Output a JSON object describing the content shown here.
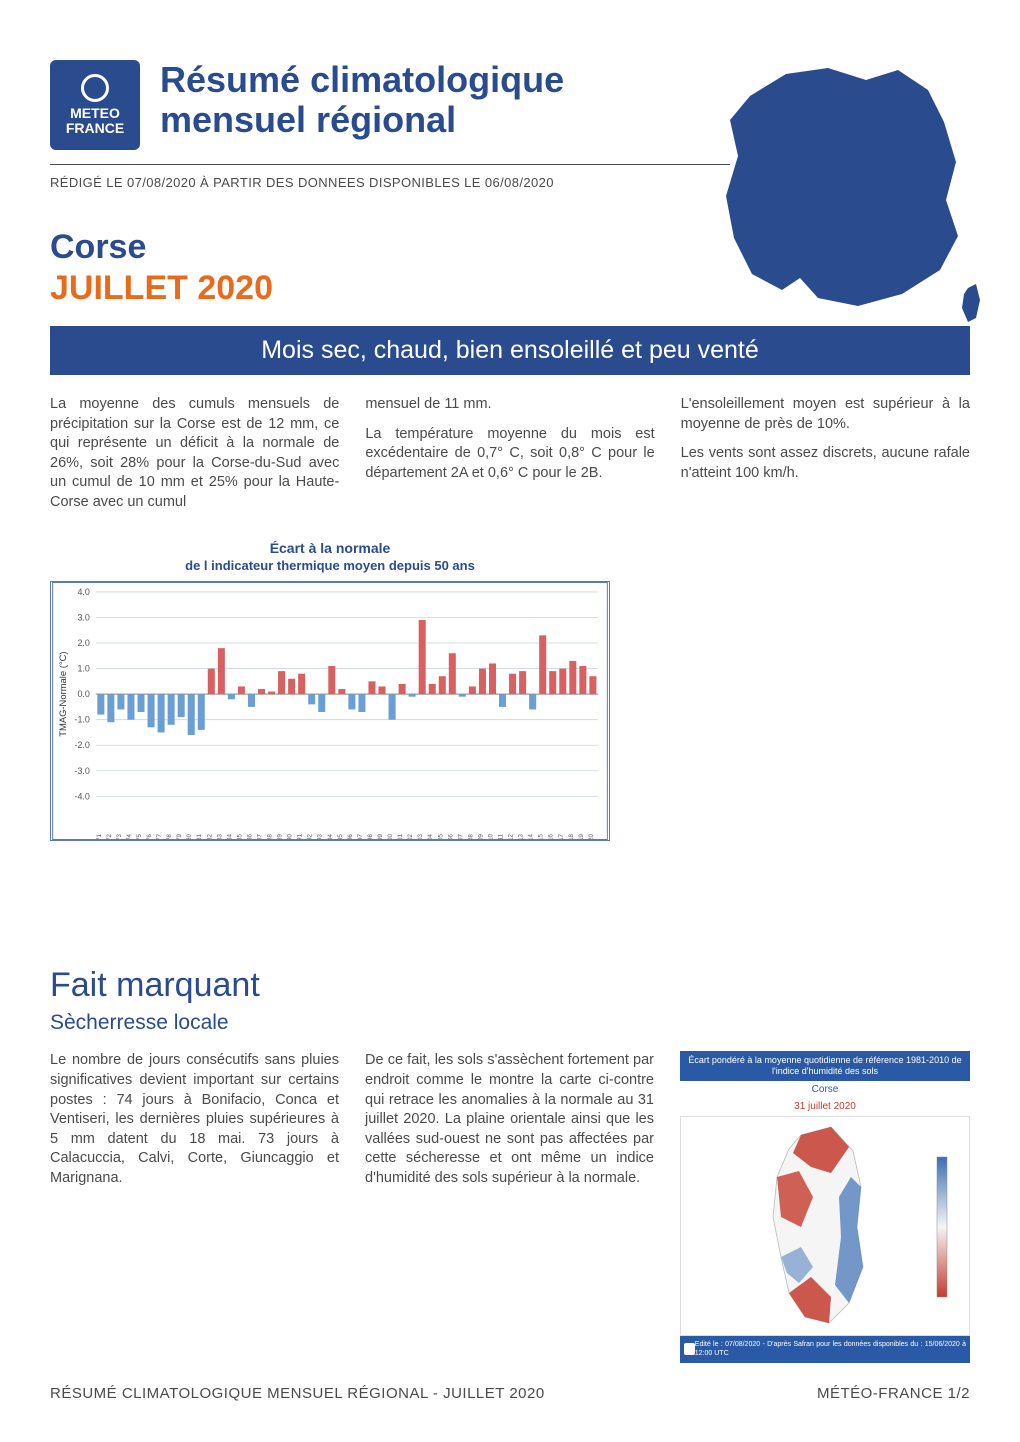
{
  "logo": {
    "line1": "METEO",
    "line2": "FRANCE"
  },
  "header": {
    "title_l1": "Résumé climatologique",
    "title_l2": "mensuel régional",
    "meta": "RÉDIGÉ LE 07/08/2020 À PARTIR DES DONNEES DISPONIBLES LE 06/08/2020"
  },
  "region": {
    "name": "Corse",
    "period": "JUILLET 2020"
  },
  "summary_bar": "Mois sec, chaud, bien ensoleillé et peu venté",
  "paragraphs": {
    "c1": "La moyenne des cumuls mensuels de précipitation sur la Corse est de 12 mm, ce qui représente un déficit à la normale de 26%, soit 28% pour la Corse-du-Sud avec un cumul de 10 mm et 25% pour la Haute-Corse avec un cumul",
    "c2a": "mensuel de 11 mm.",
    "c2b": "La température moyenne du mois est excédentaire de 0,7° C, soit 0,8° C pour le département 2A et 0,6° C pour le 2B.",
    "c3a": "L'ensoleillement moyen est supérieur à la moyenne de près de 10%.",
    "c3b": "Les vents sont assez discrets, aucune rafale n'atteint 100 km/h."
  },
  "chart": {
    "title": "Écart à la normale",
    "subtitle": "de l indicateur thermique moyen depuis 50 ans",
    "type": "bar",
    "ylabel": "TMAG-Normale (°C)",
    "ylim": [
      -4.0,
      4.0
    ],
    "ytick_step": 1.0,
    "grid_color": "#c8d4e8",
    "border_color": "#5a7ab5",
    "background_color": "#ffffff",
    "bar_color_pos": "#d96060",
    "bar_color_neg": "#6a9ed4",
    "label_fontsize": 9,
    "title_fontsize": 14,
    "years": [
      "07/1971",
      "07/1972",
      "07/1973",
      "07/1974",
      "07/1975",
      "07/1976",
      "07/1977",
      "07/1978",
      "07/1979",
      "07/1980",
      "07/1981",
      "07/1982",
      "07/1983",
      "07/1984",
      "07/1985",
      "07/1986",
      "07/1987",
      "07/1988",
      "07/1989",
      "07/1990",
      "07/1991",
      "07/1992",
      "07/1993",
      "07/1994",
      "07/1995",
      "07/1996",
      "07/1997",
      "07/1998",
      "07/1999",
      "07/2000",
      "07/2001",
      "07/2002",
      "07/2003",
      "07/2004",
      "07/2005",
      "07/2006",
      "07/2007",
      "07/2008",
      "07/2009",
      "07/2010",
      "07/2011",
      "07/2012",
      "07/2013",
      "07/2014",
      "07/2015",
      "07/2016",
      "07/2017",
      "07/2018",
      "07/2019",
      "07/2020"
    ],
    "values": [
      -0.8,
      -1.1,
      -0.6,
      -1.0,
      -0.7,
      -1.3,
      -1.5,
      -1.2,
      -0.9,
      -1.6,
      -1.4,
      1.0,
      1.8,
      -0.2,
      0.3,
      -0.5,
      0.2,
      0.1,
      0.9,
      0.6,
      0.8,
      -0.4,
      -0.7,
      1.1,
      0.2,
      -0.6,
      -0.7,
      0.5,
      0.3,
      -1.0,
      0.4,
      -0.1,
      2.9,
      0.4,
      0.7,
      1.6,
      -0.1,
      0.3,
      1.0,
      1.2,
      -0.5,
      0.8,
      0.9,
      -0.6,
      2.3,
      0.9,
      1.0,
      1.3,
      1.1,
      0.7
    ]
  },
  "fait": {
    "title": "Fait marquant",
    "subtitle": "Sècherresse locale",
    "c1": "Le nombre de jours consécutifs sans pluies significatives devient important sur certains postes : 74 jours à Bonifacio, Conca et Ventiseri, les dernières pluies supérieures à 5 mm datent du 18 mai. 73 jours à Calacuccia, Calvi, Corte, Giuncaggio et Marignana.",
    "c2": "De ce fait, les sols s'assèchent fortement par endroit comme le montre la carte ci-contre qui retrace les anomalies à la normale au 31 juillet 2020. La plaine orientale ainsi que les vallées sud-ouest ne sont pas affectées par cette sécheresse et ont même un indice d'humidité des sols supérieur à la normale.",
    "map_header": "Écart pondéré à la moyenne quotidienne de référence 1981-2010 de l'indice d'humidité des sols",
    "map_region": "Corse",
    "map_date": "31 juillet 2020",
    "map_footer": "Edité le : 07/08/2020 - D'après Safran pour les données disponibles du : 15/06/2020 à 12:00 UTC",
    "map_colors": {
      "dry": "#c43b2e",
      "mid": "#f5f5f5",
      "wet": "#3a6fb5"
    }
  },
  "footer": {
    "left": "RÉSUMÉ CLIMATOLOGIQUE MENSUEL RÉGIONAL - JUILLET 2020",
    "right": "MÉTÉO-FRANCE 1/2"
  },
  "colors": {
    "brand_blue": "#2a4b8d",
    "accent_orange": "#e86b1c",
    "text": "#4a4a4a"
  }
}
